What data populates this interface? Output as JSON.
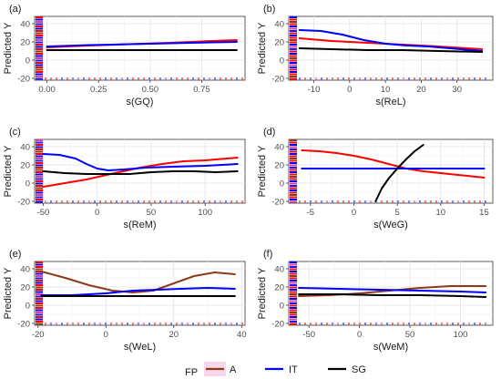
{
  "chart_data": [
    {
      "type": "line",
      "panel_label": "(a)",
      "xlabel": "s(GQ)",
      "ylabel": "Predicted Y",
      "xlim": [
        -0.06,
        0.96
      ],
      "ylim": [
        -22,
        48
      ],
      "xticks": [
        0.0,
        0.25,
        0.5,
        0.75
      ],
      "xtick_labels": [
        "0.00",
        "0.25",
        "0.50",
        "0.75"
      ],
      "yticks": [
        -20,
        0,
        20,
        40
      ],
      "ytick_labels": [
        "-20",
        "0",
        "20",
        "40"
      ],
      "grid": true,
      "series": [
        {
          "name": "A",
          "color": "#ff0000",
          "x": [
            0.0,
            0.2,
            0.4,
            0.6,
            0.8,
            0.92
          ],
          "y": [
            14,
            16,
            17.5,
            19,
            21,
            22
          ]
        },
        {
          "name": "IT",
          "color": "#0000ff",
          "x": [
            0.0,
            0.2,
            0.4,
            0.6,
            0.8,
            0.92
          ],
          "y": [
            15,
            16.5,
            17.5,
            18.5,
            19.5,
            20
          ]
        },
        {
          "name": "SG",
          "color": "#000000",
          "x": [
            0.0,
            0.92
          ],
          "y": [
            11,
            11
          ]
        }
      ]
    },
    {
      "type": "line",
      "panel_label": "(b)",
      "xlabel": "s(ReL)",
      "ylabel": "Predicted Y",
      "xlim": [
        -17,
        40
      ],
      "ylim": [
        -22,
        48
      ],
      "xticks": [
        -10,
        0,
        10,
        20,
        30
      ],
      "xtick_labels": [
        "-10",
        "0",
        "10",
        "20",
        "30"
      ],
      "yticks": [
        -20,
        0,
        20,
        40
      ],
      "ytick_labels": [
        "-20",
        "0",
        "20",
        "40"
      ],
      "grid": true,
      "series": [
        {
          "name": "A",
          "color": "#ff0000",
          "x": [
            -14,
            -5,
            5,
            15,
            25,
            37
          ],
          "y": [
            24,
            21,
            19,
            17,
            15,
            12
          ]
        },
        {
          "name": "IT",
          "color": "#0000ff",
          "x": [
            -14,
            -8,
            -2,
            4,
            10,
            16,
            22,
            28,
            37
          ],
          "y": [
            33,
            32,
            28,
            22,
            18,
            16,
            15,
            13,
            10
          ]
        },
        {
          "name": "SG",
          "color": "#000000",
          "x": [
            -14,
            -5,
            5,
            15,
            25,
            37
          ],
          "y": [
            13,
            12,
            11,
            11,
            10,
            9
          ]
        }
      ]
    },
    {
      "type": "line",
      "panel_label": "(c)",
      "xlabel": "s(ReM)",
      "ylabel": "Predicted Y",
      "xlim": [
        -58,
        137
      ],
      "ylim": [
        -22,
        48
      ],
      "xticks": [
        -50,
        0,
        50,
        100
      ],
      "xtick_labels": [
        "-50",
        "0",
        "50",
        "100"
      ],
      "yticks": [
        -20,
        0,
        20,
        40
      ],
      "ytick_labels": [
        "-20",
        "0",
        "20",
        "40"
      ],
      "grid": true,
      "series": [
        {
          "name": "A",
          "color": "#ff0000",
          "x": [
            -50,
            -30,
            -10,
            5,
            20,
            40,
            60,
            80,
            100,
            130
          ],
          "y": [
            -4,
            0,
            4,
            8,
            12,
            17,
            21,
            24,
            25,
            28
          ]
        },
        {
          "name": "IT",
          "color": "#0000ff",
          "x": [
            -50,
            -35,
            -20,
            -10,
            0,
            10,
            25,
            45,
            70,
            100,
            130
          ],
          "y": [
            32,
            31,
            27,
            21,
            16,
            14,
            15,
            17,
            18,
            19,
            21
          ]
        },
        {
          "name": "SG",
          "color": "#000000",
          "x": [
            -50,
            -30,
            -10,
            10,
            30,
            50,
            70,
            90,
            110,
            130
          ],
          "y": [
            13,
            11,
            10,
            10,
            10,
            12,
            13,
            13,
            12,
            13
          ]
        }
      ]
    },
    {
      "type": "line",
      "panel_label": "(d)",
      "xlabel": "s(WeG)",
      "ylabel": "Predicted Y",
      "xlim": [
        -7.5,
        16
      ],
      "ylim": [
        -22,
        48
      ],
      "xticks": [
        -5,
        0,
        5,
        10,
        15
      ],
      "xtick_labels": [
        "-5",
        "0",
        "5",
        "10",
        "15"
      ],
      "yticks": [
        -20,
        0,
        20,
        40
      ],
      "ytick_labels": [
        "-20",
        "0",
        "20",
        "40"
      ],
      "grid": true,
      "series": [
        {
          "name": "A",
          "color": "#ff0000",
          "x": [
            -6,
            -4,
            -2,
            0,
            2,
            4,
            6,
            8,
            10,
            12,
            15
          ],
          "y": [
            36,
            35,
            33,
            30,
            26,
            21,
            16,
            13,
            11,
            9,
            6
          ]
        },
        {
          "name": "IT",
          "color": "#0000ff",
          "x": [
            -6,
            15
          ],
          "y": [
            16,
            16
          ]
        },
        {
          "name": "SG",
          "color": "#000000",
          "x": [
            2.5,
            3.2,
            4,
            5,
            6,
            7,
            8
          ],
          "y": [
            -20,
            -6,
            5,
            16,
            26,
            35,
            42
          ]
        }
      ]
    },
    {
      "type": "line",
      "panel_label": "(e)",
      "xlabel": "s(WeL)",
      "ylabel": "Predicted Y",
      "xlim": [
        -21,
        41
      ],
      "ylim": [
        -22,
        48
      ],
      "xticks": [
        -20,
        0,
        20,
        40
      ],
      "xtick_labels": [
        "-20",
        "0",
        "20",
        "40"
      ],
      "yticks": [
        -20,
        0,
        20,
        40
      ],
      "ytick_labels": [
        "-20",
        "0",
        "20",
        "40"
      ],
      "grid": true,
      "series": [
        {
          "name": "A",
          "color": "#8b3a1a",
          "x": [
            -19,
            -12,
            -5,
            2,
            8,
            14,
            20,
            26,
            32,
            38
          ],
          "y": [
            37,
            30,
            22,
            16,
            14,
            16,
            24,
            32,
            36,
            34
          ]
        },
        {
          "name": "IT",
          "color": "#0000ff",
          "x": [
            -19,
            -10,
            0,
            8,
            15,
            22,
            30,
            38
          ],
          "y": [
            11,
            11,
            13,
            16,
            17,
            18,
            19,
            18
          ]
        },
        {
          "name": "SG",
          "color": "#000000",
          "x": [
            -19,
            38
          ],
          "y": [
            10,
            10
          ]
        }
      ]
    },
    {
      "type": "line",
      "panel_label": "(f)",
      "xlabel": "s(WeM)",
      "ylabel": "Predicted Y",
      "xlim": [
        -70,
        132
      ],
      "ylim": [
        -22,
        48
      ],
      "xticks": [
        -50,
        0,
        50,
        100
      ],
      "xtick_labels": [
        "-50",
        "0",
        "50",
        "100"
      ],
      "yticks": [
        -20,
        0,
        20,
        40
      ],
      "ytick_labels": [
        "-20",
        "0",
        "20",
        "40"
      ],
      "grid": true,
      "series": [
        {
          "name": "A",
          "color": "#8b3a1a",
          "x": [
            -60,
            -30,
            0,
            30,
            60,
            90,
            125
          ],
          "y": [
            10,
            11,
            13,
            16,
            19,
            21,
            21
          ]
        },
        {
          "name": "IT",
          "color": "#0000ff",
          "x": [
            -60,
            -20,
            20,
            60,
            100,
            125
          ],
          "y": [
            19,
            18,
            17,
            16,
            15,
            14
          ]
        },
        {
          "name": "SG",
          "color": "#000000",
          "x": [
            -60,
            -20,
            20,
            60,
            100,
            125
          ],
          "y": [
            12,
            12,
            11,
            11,
            10,
            9
          ]
        }
      ]
    }
  ],
  "legend": {
    "title": "FP",
    "placement": "bottom",
    "items": [
      {
        "label": "A",
        "color": "#8b3a1a"
      },
      {
        "label": "IT",
        "color": "#0000ff"
      },
      {
        "label": "SG",
        "color": "#000000"
      }
    ]
  }
}
